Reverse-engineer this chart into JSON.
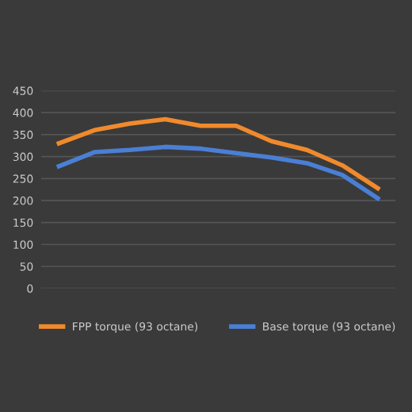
{
  "chart_data": {
    "type": "line",
    "categories": [
      null,
      null,
      null,
      null,
      null,
      null,
      null,
      null,
      null,
      null
    ],
    "series": [
      {
        "name": "FPP torque (93 octane)",
        "color": "#f08a2c",
        "values": [
          330,
          360,
          375,
          385,
          370,
          370,
          335,
          315,
          280,
          228
        ]
      },
      {
        "name": "Base torque (93 octane)",
        "color": "#4a7fd4",
        "values": [
          278,
          310,
          315,
          322,
          318,
          308,
          298,
          285,
          258,
          205
        ]
      }
    ],
    "ylim": [
      0,
      450
    ],
    "yticks": [
      0,
      50,
      100,
      150,
      200,
      250,
      300,
      350,
      400,
      450
    ],
    "grid": "y",
    "legend": "bottom",
    "marker": "none",
    "line_style": "solid"
  }
}
